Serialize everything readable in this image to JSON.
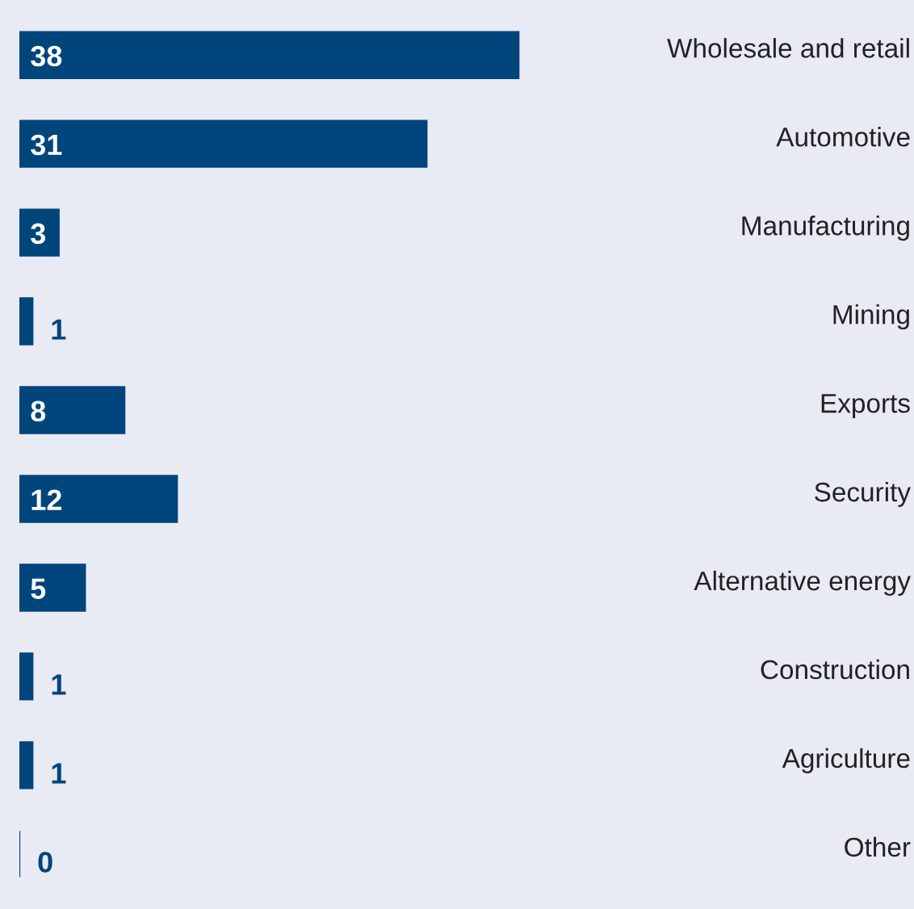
{
  "chart_data": {
    "type": "bar",
    "orientation": "horizontal",
    "categories": [
      "Wholesale and retail",
      "Automotive",
      "Manufacturing",
      "Mining",
      "Exports",
      "Security",
      "Alternative energy",
      "Construction",
      "Agriculture",
      "Other"
    ],
    "values": [
      38,
      31,
      3,
      1,
      8,
      12,
      5,
      1,
      1,
      0
    ],
    "color": "#00457c",
    "data_labels": true
  }
}
